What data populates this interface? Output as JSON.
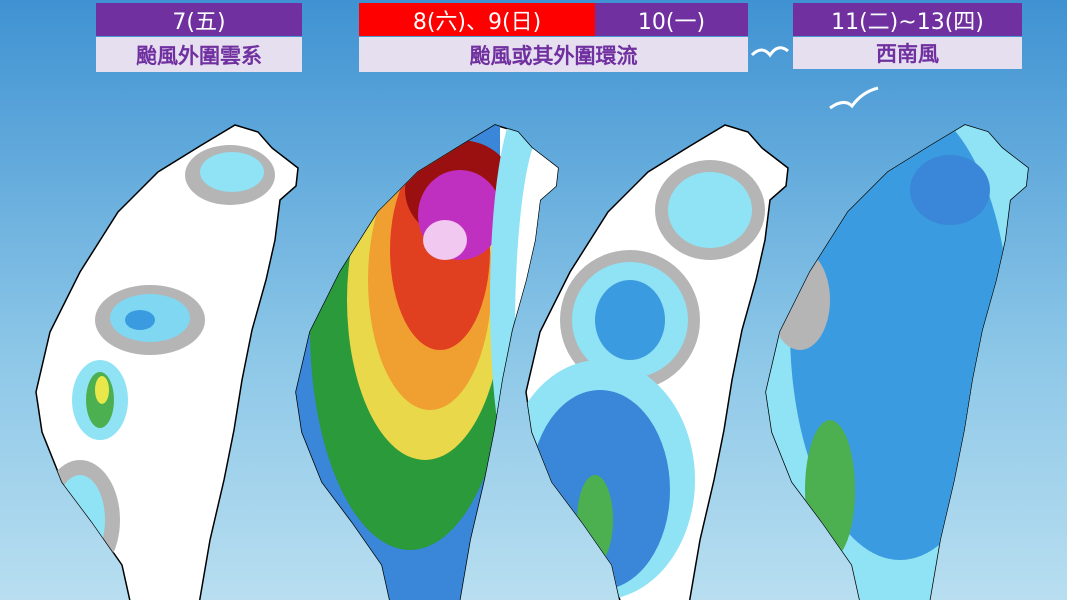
{
  "panels": [
    {
      "dates": [
        "7(五)"
      ],
      "description": "颱風外圍雲系"
    },
    {
      "dates": [
        "8(六)、9(日)",
        "10(一)"
      ],
      "description": "颱風或其外圍環流"
    },
    {
      "dates": [
        "11(二)~13(四)"
      ],
      "description": "西南風"
    }
  ]
}
